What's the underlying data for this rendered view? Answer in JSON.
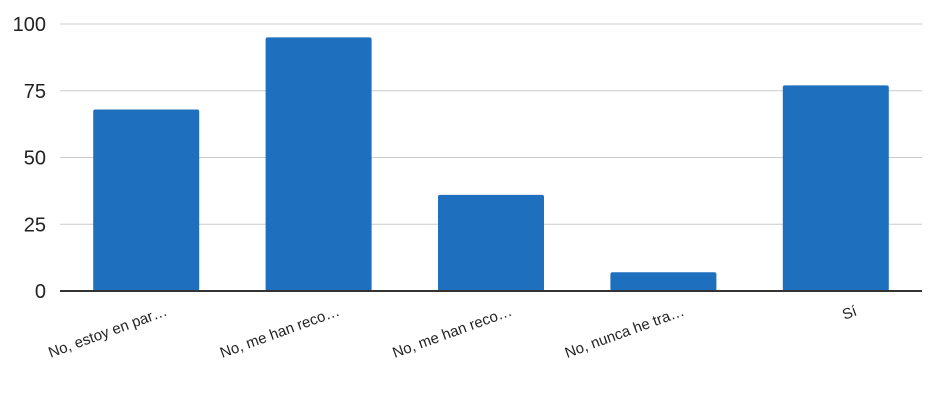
{
  "chart_data": {
    "type": "bar",
    "categories": [
      "No, estoy en par…",
      "No, me han reco…",
      "No, me han reco…",
      "No, nunca he tra…",
      "Sí"
    ],
    "values": [
      68,
      95,
      36,
      7,
      77
    ],
    "title": "",
    "xlabel": "",
    "ylabel": "",
    "ylim": [
      0,
      100
    ],
    "yticks": [
      0,
      25,
      50,
      75,
      100
    ],
    "grid": true,
    "legend": "none",
    "colors": {
      "bar": "#1f6fbf",
      "grid": "#cccccc",
      "axis": "#333333"
    }
  }
}
